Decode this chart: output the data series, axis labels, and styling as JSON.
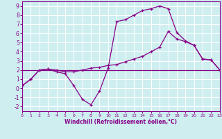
{
  "xlabel": "Windchill (Refroidissement éolien,°C)",
  "xlim": [
    0,
    23
  ],
  "ylim": [
    -2.5,
    9.5
  ],
  "yticks": [
    -2,
    -1,
    0,
    1,
    2,
    3,
    4,
    5,
    6,
    7,
    8,
    9
  ],
  "xticks": [
    0,
    1,
    2,
    3,
    4,
    5,
    6,
    7,
    8,
    9,
    10,
    11,
    12,
    13,
    14,
    15,
    16,
    17,
    18,
    19,
    20,
    21,
    22,
    23
  ],
  "bg_color": "#ceeef0",
  "grid_color": "#ffffff",
  "line_color": "#880088",
  "curve1_x": [
    0,
    1,
    2,
    3,
    4,
    5,
    6,
    7,
    8,
    9,
    10,
    11,
    12,
    13,
    14,
    15,
    16,
    17,
    18,
    19,
    20,
    21,
    22,
    23
  ],
  "curve1_y": [
    0.3,
    1.0,
    2.0,
    2.1,
    1.8,
    1.6,
    0.3,
    -1.2,
    -1.8,
    -0.3,
    2.2,
    7.3,
    7.5,
    8.0,
    8.5,
    8.7,
    9.0,
    8.7,
    6.1,
    5.2,
    4.7,
    3.2,
    3.1,
    2.0
  ],
  "curve2_x": [
    0,
    1,
    2,
    3,
    4,
    5,
    6,
    7,
    8,
    9,
    10,
    11,
    12,
    13,
    14,
    15,
    16,
    17,
    18,
    19,
    20,
    21,
    22,
    23
  ],
  "curve2_y": [
    0.3,
    1.0,
    2.0,
    2.1,
    2.0,
    1.8,
    1.8,
    2.0,
    2.2,
    2.3,
    2.5,
    2.6,
    2.9,
    3.2,
    3.5,
    4.0,
    4.5,
    6.2,
    5.4,
    5.1,
    4.7,
    3.2,
    3.1,
    2.0
  ],
  "hline_y": 2.0,
  "hline_x0": 0,
  "hline_x1": 23
}
